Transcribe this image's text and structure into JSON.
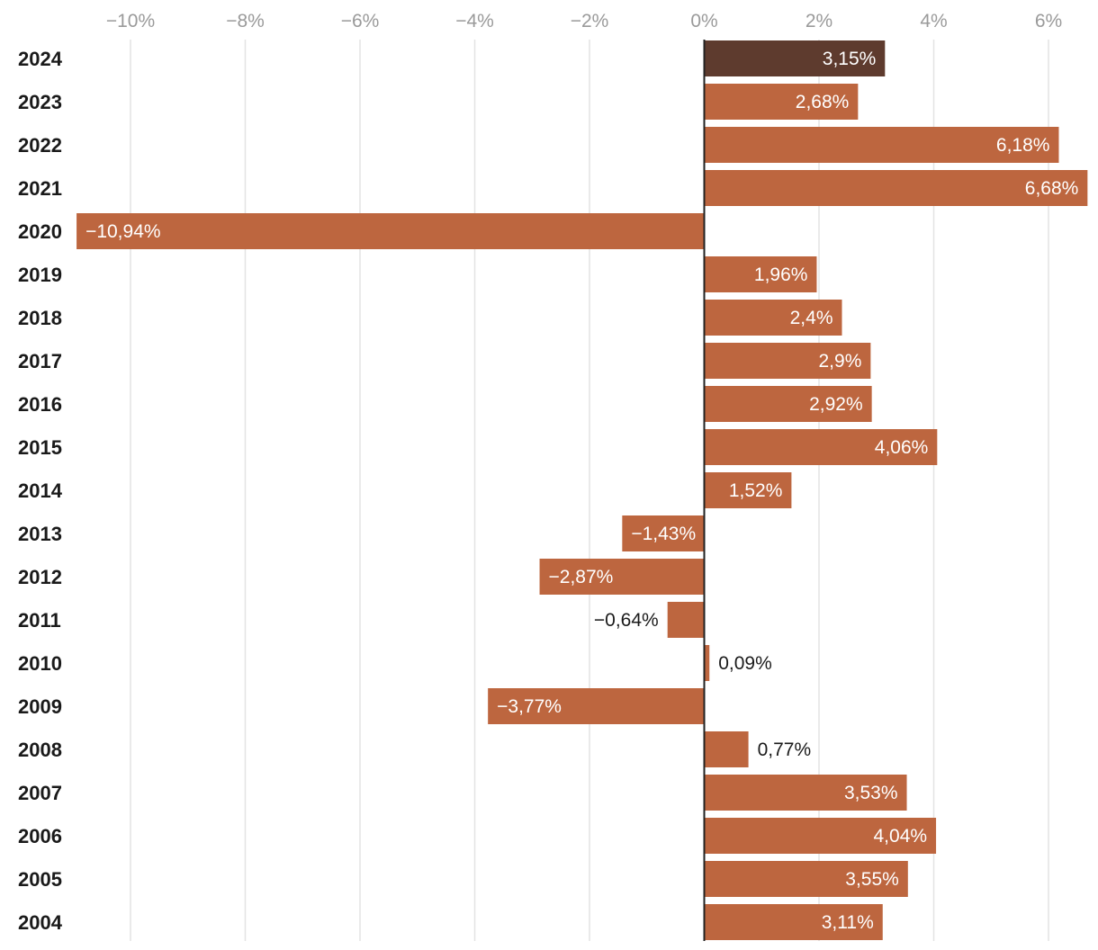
{
  "chart_data": {
    "type": "bar",
    "orientation": "horizontal",
    "title": "",
    "xlabel": "",
    "ylabel": "",
    "categories": [
      "2024",
      "2023",
      "2022",
      "2021",
      "2020",
      "2019",
      "2018",
      "2017",
      "2016",
      "2015",
      "2014",
      "2013",
      "2012",
      "2011",
      "2010",
      "2009",
      "2008",
      "2007",
      "2006",
      "2005",
      "2004"
    ],
    "values": [
      3.15,
      2.68,
      6.18,
      6.68,
      -10.94,
      1.96,
      2.4,
      2.9,
      2.92,
      4.06,
      1.52,
      -1.43,
      -2.87,
      -0.64,
      0.09,
      -3.77,
      0.77,
      3.53,
      4.04,
      3.55,
      3.11
    ],
    "value_labels": [
      "3,15%",
      "2,68%",
      "6,18%",
      "6,68%",
      "−10,94%",
      "1,96%",
      "2,4%",
      "2,9%",
      "2,92%",
      "4,06%",
      "1,52%",
      "−1,43%",
      "−2,87%",
      "−0,64%",
      "0,09%",
      "−3,77%",
      "0,77%",
      "3,53%",
      "4,04%",
      "3,55%",
      "3,11%"
    ],
    "xlim": [
      -11,
      6.75
    ],
    "ticks": [
      -10,
      -8,
      -6,
      -4,
      -2,
      0,
      2,
      4,
      6
    ],
    "tick_labels": [
      "−10%",
      "−8%",
      "−6%",
      "−4%",
      "−2%",
      "0%",
      "2%",
      "4%",
      "6%"
    ],
    "grid": true,
    "axis_position": "top",
    "highlight_category": "2024",
    "colors": {
      "bar": "#bd663f",
      "highlight": "#5e3b2e",
      "grid": "#e3e3e3",
      "zero_line": "#222222",
      "label_inside": "#ffffff",
      "label_outside": "#1a1a1a"
    }
  }
}
